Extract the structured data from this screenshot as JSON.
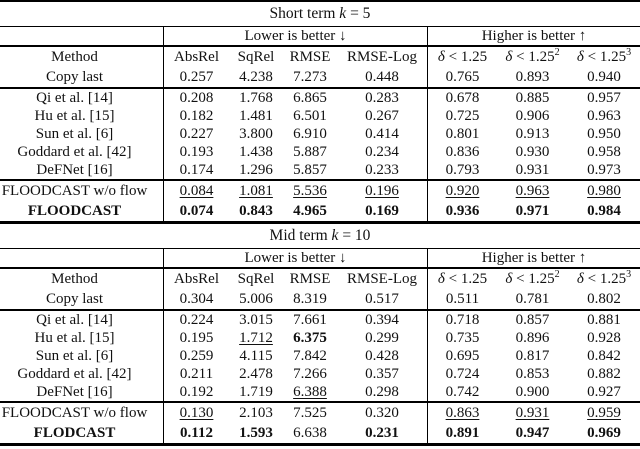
{
  "colors": {
    "background": "#ffffff",
    "text": "#111111",
    "rule": "#000000"
  },
  "tables": [
    {
      "title": {
        "pre": "Short term ",
        "var": "k",
        "post": " = 5"
      },
      "groups": {
        "lower": "Lower is better ↓",
        "higher": "Higher is better ↑"
      },
      "columns": {
        "method": "Method",
        "metrics": [
          "AbsRel",
          "SqRel",
          "RMSE",
          "RMSE-Log"
        ],
        "deltas": [
          {
            "sym": "δ",
            "lt": " < 1.25",
            "sup": ""
          },
          {
            "sym": "δ",
            "lt": " < 1.25",
            "sup": "2"
          },
          {
            "sym": "δ",
            "lt": " < 1.25",
            "sup": "3"
          }
        ]
      },
      "baseline_row": {
        "method": "Copy last",
        "values": [
          "0.257",
          "4.238",
          "7.273",
          "0.448",
          "0.765",
          "0.893",
          "0.940"
        ]
      },
      "body_rows": [
        {
          "method": "Qi et al. [14]",
          "values": [
            "0.208",
            "1.768",
            "6.865",
            "0.283",
            "0.678",
            "0.885",
            "0.957"
          ]
        },
        {
          "method": "Hu et al. [15]",
          "values": [
            "0.182",
            "1.481",
            "6.501",
            "0.267",
            "0.725",
            "0.906",
            "0.963"
          ]
        },
        {
          "method": "Sun et al. [6]",
          "values": [
            "0.227",
            "3.800",
            "6.910",
            "0.414",
            "0.801",
            "0.913",
            "0.950"
          ]
        },
        {
          "method": "Goddard et al. [42]",
          "values": [
            "0.193",
            "1.438",
            "5.887",
            "0.234",
            "0.836",
            "0.930",
            "0.958"
          ]
        },
        {
          "method": "DeFNet [16]",
          "values": [
            "0.174",
            "1.296",
            "5.857",
            "0.233",
            "0.793",
            "0.931",
            "0.973"
          ]
        }
      ],
      "highlight_rows": [
        {
          "method": "FLOODCAST w/o flow",
          "bold_method": false,
          "values": [
            {
              "v": "0.084",
              "s": "u"
            },
            {
              "v": "1.081",
              "s": "u"
            },
            {
              "v": "5.536",
              "s": "u"
            },
            {
              "v": "0.196",
              "s": "u"
            },
            {
              "v": "0.920",
              "s": "u"
            },
            {
              "v": "0.963",
              "s": "u"
            },
            {
              "v": "0.980",
              "s": "u"
            }
          ]
        },
        {
          "method": "FLOODCAST",
          "bold_method": true,
          "values": [
            {
              "v": "0.074",
              "s": "b"
            },
            {
              "v": "0.843",
              "s": "b"
            },
            {
              "v": "4.965",
              "s": "b"
            },
            {
              "v": "0.169",
              "s": "b"
            },
            {
              "v": "0.936",
              "s": "b"
            },
            {
              "v": "0.971",
              "s": "b"
            },
            {
              "v": "0.984",
              "s": "b"
            }
          ]
        }
      ]
    },
    {
      "title": {
        "pre": "Mid term ",
        "var": "k",
        "post": " = 10"
      },
      "groups": {
        "lower": "Lower is better ↓",
        "higher": "Higher is better ↑"
      },
      "columns": {
        "method": "Method",
        "metrics": [
          "AbsRel",
          "SqRel",
          "RMSE",
          "RMSE-Log"
        ],
        "deltas": [
          {
            "sym": "δ",
            "lt": " < 1.25",
            "sup": ""
          },
          {
            "sym": "δ",
            "lt": " < 1.25",
            "sup": "2"
          },
          {
            "sym": "δ",
            "lt": " < 1.25",
            "sup": "3"
          }
        ]
      },
      "baseline_row": {
        "method": "Copy last",
        "values": [
          "0.304",
          "5.006",
          "8.319",
          "0.517",
          "0.511",
          "0.781",
          "0.802"
        ]
      },
      "body_rows": [
        {
          "method": "Qi et al. [14]",
          "values": [
            "0.224",
            "3.015",
            "7.661",
            "0.394",
            "0.718",
            "0.857",
            "0.881"
          ]
        },
        {
          "method": "Hu et al. [15]",
          "values": [
            "0.195",
            {
              "v": "1.712",
              "s": "u"
            },
            {
              "v": "6.375",
              "s": "b"
            },
            "0.299",
            "0.735",
            "0.896",
            "0.928"
          ]
        },
        {
          "method": "Sun et al. [6]",
          "values": [
            "0.259",
            "4.115",
            "7.842",
            "0.428",
            "0.695",
            "0.817",
            "0.842"
          ]
        },
        {
          "method": "Goddard et al. [42]",
          "values": [
            "0.211",
            "2.478",
            "7.266",
            "0.357",
            "0.724",
            "0.853",
            "0.882"
          ]
        },
        {
          "method": "DeFNet [16]",
          "values": [
            "0.192",
            "1.719",
            {
              "v": "6.388",
              "s": "u"
            },
            "0.298",
            "0.742",
            "0.900",
            "0.927"
          ]
        }
      ],
      "highlight_rows": [
        {
          "method": "FLOODCAST w/o flow",
          "bold_method": false,
          "values": [
            {
              "v": "0.130",
              "s": "u"
            },
            "2.103",
            "7.525",
            "0.320",
            {
              "v": "0.863",
              "s": "u"
            },
            {
              "v": "0.931",
              "s": "u"
            },
            {
              "v": "0.959",
              "s": "u"
            }
          ]
        },
        {
          "method": "FLODCAST",
          "bold_method": true,
          "values": [
            {
              "v": "0.112",
              "s": "b"
            },
            {
              "v": "1.593",
              "s": "b"
            },
            "6.638",
            {
              "v": "0.231",
              "s": "b"
            },
            {
              "v": "0.891",
              "s": "b"
            },
            {
              "v": "0.947",
              "s": "b"
            },
            {
              "v": "0.969",
              "s": "b"
            }
          ]
        }
      ]
    }
  ]
}
